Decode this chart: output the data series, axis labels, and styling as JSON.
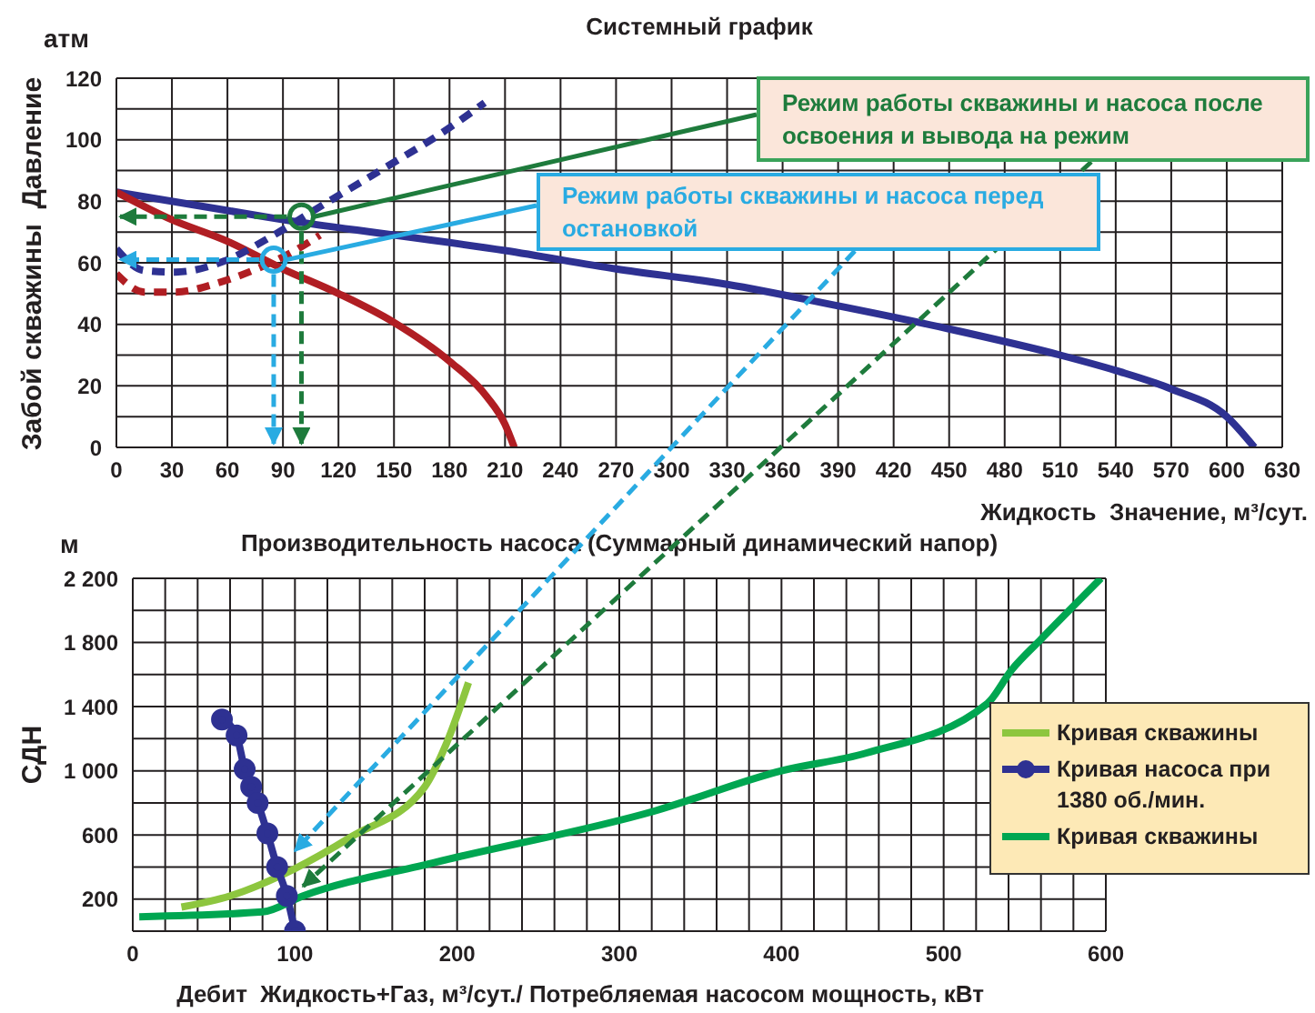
{
  "chart_data": [
    {
      "type": "line",
      "title": "Системный график",
      "xlabel": "Жидкость  Значение, м³/сут.",
      "ylabel": "Забой скважины  Давление",
      "xlim": [
        0,
        630
      ],
      "ylim": [
        0,
        120
      ],
      "xticks": [
        0,
        30,
        60,
        90,
        120,
        150,
        180,
        210,
        240,
        270,
        300,
        330,
        360,
        390,
        420,
        450,
        480,
        510,
        540,
        570,
        600,
        630
      ],
      "yticks": [
        0,
        {
          "value": 10,
          "label": null
        },
        20,
        {
          "value": 30,
          "label": null
        },
        40,
        {
          "value": 50,
          "label": null
        },
        60,
        {
          "value": 70,
          "label": null
        },
        80,
        {
          "value": 90,
          "label": null
        },
        100,
        {
          "value": 110,
          "label": null
        },
        120
      ],
      "grid": true,
      "marker": "none",
      "annotations": [
        "атм",
        {
          "text": "Режим работы скважины и насоса после освоения и вывода на режим",
          "x": 100,
          "y": 75
        },
        {
          "text": "Режим работы скважины и насоса перед остановкой",
          "x": 85,
          "y": 61
        }
      ],
      "series": [
        {
          "color": "#2e3192",
          "line_style": "solid",
          "x": [
            0,
            60,
            90,
            150,
            210,
            270,
            330,
            390,
            450,
            510,
            540,
            570,
            600,
            615
          ],
          "values": [
            83,
            77,
            74,
            69,
            64,
            58,
            53,
            46,
            38.5,
            30,
            25,
            19,
            10,
            0
          ]
        },
        {
          "color": "#b01e23",
          "line_style": "solid",
          "x": [
            0,
            30,
            60,
            90,
            120,
            150,
            180,
            200,
            210,
            215
          ],
          "values": [
            83,
            74,
            67,
            58,
            50,
            40.6,
            28,
            16.6,
            7.5,
            0
          ]
        },
        {
          "color": "#2e3192",
          "line_style": "dashed",
          "x": [
            0,
            15,
            32,
            58,
            85,
            108,
            144,
            174,
            199
          ],
          "values": [
            64.5,
            57.5,
            57,
            60.5,
            69,
            77.5,
            90.5,
            101.5,
            112
          ]
        },
        {
          "color": "#b01e23",
          "line_style": "dashed",
          "x": [
            0,
            15,
            32,
            55,
            78,
            95,
            110
          ],
          "values": [
            56.4,
            50.5,
            50.5,
            53.5,
            58.6,
            63.5,
            69
          ]
        }
      ]
    },
    {
      "type": "line",
      "title": "Производительность насоса (Суммарный динамический напор)",
      "xlabel": "Дебит  Жидкость+Газ, м³/сут./ Потребляемая насосом мощность, кВт",
      "ylabel": "СДН",
      "xlim": [
        0,
        600
      ],
      "ylim": [
        0,
        2200
      ],
      "xticks": [
        0,
        {
          "value": 20,
          "label": null
        },
        {
          "value": 40,
          "label": null
        },
        {
          "value": 60,
          "label": null
        },
        {
          "value": 80,
          "label": null
        },
        100,
        {
          "value": 120,
          "label": null
        },
        {
          "value": 140,
          "label": null
        },
        {
          "value": 160,
          "label": null
        },
        {
          "value": 180,
          "label": null
        },
        200,
        {
          "value": 220,
          "label": null
        },
        {
          "value": 240,
          "label": null
        },
        {
          "value": 260,
          "label": null
        },
        {
          "value": 280,
          "label": null
        },
        300,
        {
          "value": 320,
          "label": null
        },
        {
          "value": 340,
          "label": null
        },
        {
          "value": 360,
          "label": null
        },
        {
          "value": 380,
          "label": null
        },
        400,
        {
          "value": 420,
          "label": null
        },
        {
          "value": 440,
          "label": null
        },
        {
          "value": 460,
          "label": null
        },
        {
          "value": 480,
          "label": null
        },
        500,
        {
          "value": 520,
          "label": null
        },
        {
          "value": 540,
          "label": null
        },
        {
          "value": 560,
          "label": null
        },
        {
          "value": 580,
          "label": null
        },
        600
      ],
      "yticks": [
        {
          "value": 0,
          "label": null
        },
        200,
        {
          "value": 400,
          "label": null
        },
        600,
        {
          "value": 800,
          "label": null
        },
        {
          "value": 1000,
          "label": "1 000"
        },
        {
          "value": 1200,
          "label": null
        },
        {
          "value": 1400,
          "label": "1 400"
        },
        {
          "value": 1600,
          "label": null
        },
        {
          "value": 1800,
          "label": "1 800"
        },
        {
          "value": 2000,
          "label": null
        },
        {
          "value": 2200,
          "label": "2 200"
        }
      ],
      "grid": true,
      "legend": "bottom right",
      "marker": "none",
      "annotations": [
        "м"
      ],
      "series": [
        {
          "name": "Кривая скважины",
          "color": "#8dc63f",
          "x": [
            30,
            60,
            100,
            135,
            180,
            193,
            207
          ],
          "values": [
            150,
            220,
            390,
            590,
            900,
            1160,
            1550
          ]
        },
        {
          "name": "Кривая насоса при 1380 об./мин.",
          "color": "#2e3192",
          "marker": "circle",
          "x": [
            55,
            64,
            69,
            73,
            77,
            83,
            89,
            95,
            100
          ],
          "values": [
            1320,
            1220,
            1010,
            900,
            800,
            610,
            400,
            220,
            0
          ]
        },
        {
          "name": "Кривая скважины",
          "color": "#00a651",
          "x": [
            4,
            80,
            105,
            187,
            322,
            400,
            452,
            527,
            542,
            560,
            597
          ],
          "values": [
            90,
            120,
            220,
            430,
            750,
            1000,
            1110,
            1420,
            1630,
            1820,
            2200
          ]
        }
      ]
    }
  ]
}
